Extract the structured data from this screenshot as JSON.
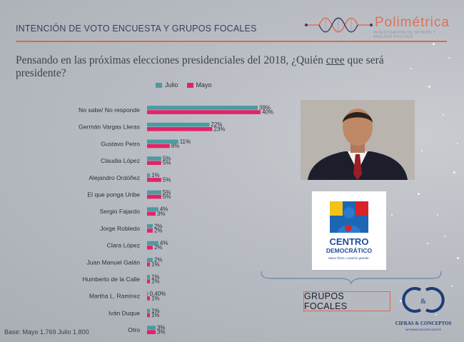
{
  "header": {
    "title": "INTENCIÓN DE VOTO ENCUESTA Y GRUPOS FOCALES",
    "brand_name": "Polimétrica",
    "brand_tagline": "INVESTIGACIÓN DE OPINIÓN Y ANÁLISIS POLÍTICO",
    "brand_color": "#e07058"
  },
  "question": {
    "before": "Pensando en las próximas elecciones presidenciales del 2018, ¿Quién ",
    "emphasis": "cree",
    "after": " que será presidente?"
  },
  "chart_data": {
    "type": "bar",
    "orientation": "horizontal",
    "title": "",
    "categories": [
      "No sabe/ No responde",
      "Germán Vargas Lleras",
      "Gustavo Petro",
      "Claudia López",
      "Alejandro Ordóñez",
      "El que ponga Uribe",
      "Sergio Fajardo",
      "Jorge Robledo",
      "Clara López",
      "Juan Manuel Galán",
      "Humberto de la Calle",
      "Martha L. Ramírez",
      "Iván Duque",
      "Otro"
    ],
    "series": [
      {
        "name": "Julio",
        "color": "#4d9aa1",
        "values": [
          39,
          22,
          11,
          5,
          1,
          5,
          4,
          2,
          4,
          2,
          1,
          0.4,
          1,
          3
        ],
        "labels": [
          "39%",
          "22%",
          "11%",
          "5%",
          "1%",
          "5%",
          "4%",
          "2%",
          "4%",
          "2%",
          "1%",
          "0,40%",
          "1%",
          "3%"
        ]
      },
      {
        "name": "Mayo",
        "color": "#e2236a",
        "values": [
          40,
          23,
          8,
          5,
          5,
          5,
          3,
          2,
          2,
          1,
          1,
          1,
          1,
          3
        ],
        "labels": [
          "40%",
          "23%",
          "8%",
          "5%",
          "5%",
          "5%",
          "3%",
          "2%",
          "2%",
          "1%",
          "1%",
          "1%",
          "1%",
          "3%"
        ]
      }
    ],
    "xlim": [
      0,
      40
    ]
  },
  "right_panel": {
    "party_name_line1": "CENTRO",
    "party_name_line2": "DEMOCRÁTICO",
    "party_slogan": "Mano firme, corazón grande.",
    "focus_groups_label": "GRUPOS FOCALES",
    "partner_name": "CIFRAS & CONCEPTOS",
    "partner_tagline": "INFORMACIÓN INTELIGENTE"
  },
  "footer": {
    "base_note": "Base: Mayo 1.769 Julio 1.800"
  }
}
